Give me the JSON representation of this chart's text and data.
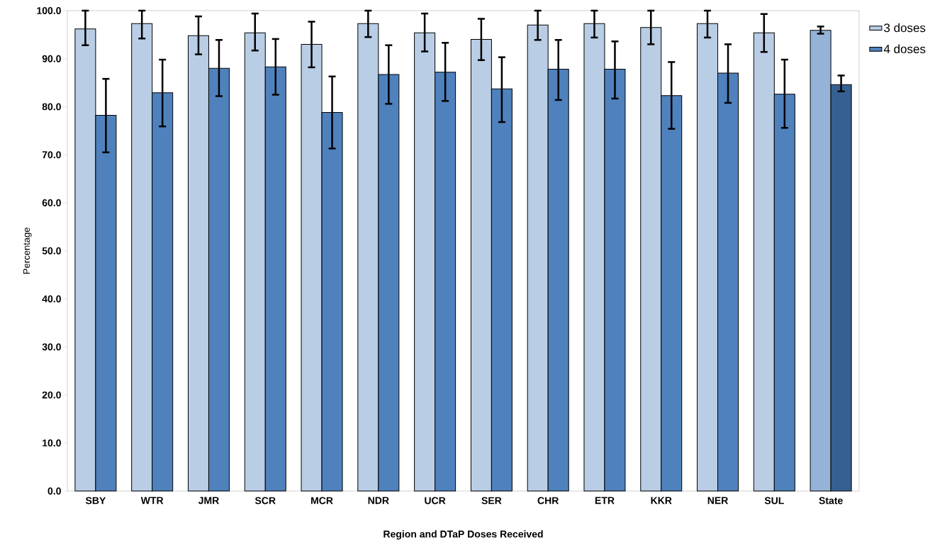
{
  "chart_data": {
    "type": "bar",
    "xlabel": "Region and DTaP Doses Received",
    "ylabel": "Percentage",
    "categories": [
      "SBY",
      "WTR",
      "JMR",
      "SCR",
      "MCR",
      "NDR",
      "UCR",
      "SER",
      "CHR",
      "ETR",
      "KKR",
      "NER",
      "SUL",
      "State"
    ],
    "series": [
      {
        "name": "3 doses",
        "color": "#b9cde5",
        "colors": [
          "#b9cde5",
          "#b9cde5",
          "#b9cde5",
          "#b9cde5",
          "#b9cde5",
          "#b9cde5",
          "#b9cde5",
          "#b9cde5",
          "#b9cde5",
          "#b9cde5",
          "#b9cde5",
          "#b9cde5",
          "#b9cde5",
          "#95b3d7"
        ],
        "values": [
          96.2,
          97.3,
          94.8,
          95.4,
          93.0,
          97.3,
          95.4,
          94.0,
          97.0,
          97.3,
          96.5,
          97.3,
          95.4,
          95.9
        ],
        "errors": [
          [
            92.8,
            100
          ],
          [
            94.2,
            100
          ],
          [
            90.9,
            98.8
          ],
          [
            91.7,
            99.4
          ],
          [
            88.2,
            97.7
          ],
          [
            94.5,
            100
          ],
          [
            91.5,
            99.4
          ],
          [
            89.7,
            98.3
          ],
          [
            93.9,
            100
          ],
          [
            94.4,
            100
          ],
          [
            93.0,
            100
          ],
          [
            94.4,
            100
          ],
          [
            91.4,
            99.3
          ],
          [
            95.2,
            96.7
          ]
        ]
      },
      {
        "name": "4 doses",
        "color": "#4f81bd",
        "colors": [
          "#4f81bd",
          "#4f81bd",
          "#4f81bd",
          "#4f81bd",
          "#4f81bd",
          "#4f81bd",
          "#4f81bd",
          "#4f81bd",
          "#4f81bd",
          "#4f81bd",
          "#4f81bd",
          "#4f81bd",
          "#4f81bd",
          "#376092"
        ],
        "values": [
          78.2,
          82.9,
          88.0,
          88.3,
          78.8,
          86.7,
          87.2,
          83.7,
          87.8,
          87.8,
          82.3,
          87.0,
          82.6,
          84.6
        ],
        "errors": [
          [
            70.5,
            85.8
          ],
          [
            75.9,
            89.8
          ],
          [
            82.2,
            93.9
          ],
          [
            82.5,
            94.1
          ],
          [
            71.3,
            86.3
          ],
          [
            80.6,
            92.8
          ],
          [
            81.2,
            93.3
          ],
          [
            76.8,
            90.3
          ],
          [
            81.4,
            93.9
          ],
          [
            81.7,
            93.6
          ],
          [
            75.4,
            89.3
          ],
          [
            80.8,
            93.0
          ],
          [
            75.6,
            89.8
          ],
          [
            83.2,
            86.5
          ]
        ]
      }
    ],
    "ylim": [
      0,
      100
    ],
    "yticks": [
      {
        "value": 0,
        "label": "0.0"
      },
      {
        "value": 10,
        "label": "10.0"
      },
      {
        "value": 20,
        "label": "20.0"
      },
      {
        "value": 30,
        "label": "30.0"
      },
      {
        "value": 40,
        "label": "40.0"
      },
      {
        "value": 50,
        "label": "50.0"
      },
      {
        "value": 60,
        "label": "60.0"
      },
      {
        "value": 70,
        "label": "70.0"
      },
      {
        "value": 80,
        "label": "80.0"
      },
      {
        "value": 90,
        "label": "90.0"
      },
      {
        "value": 100,
        "label": "100.0"
      }
    ],
    "grid": false,
    "legend": "right"
  }
}
